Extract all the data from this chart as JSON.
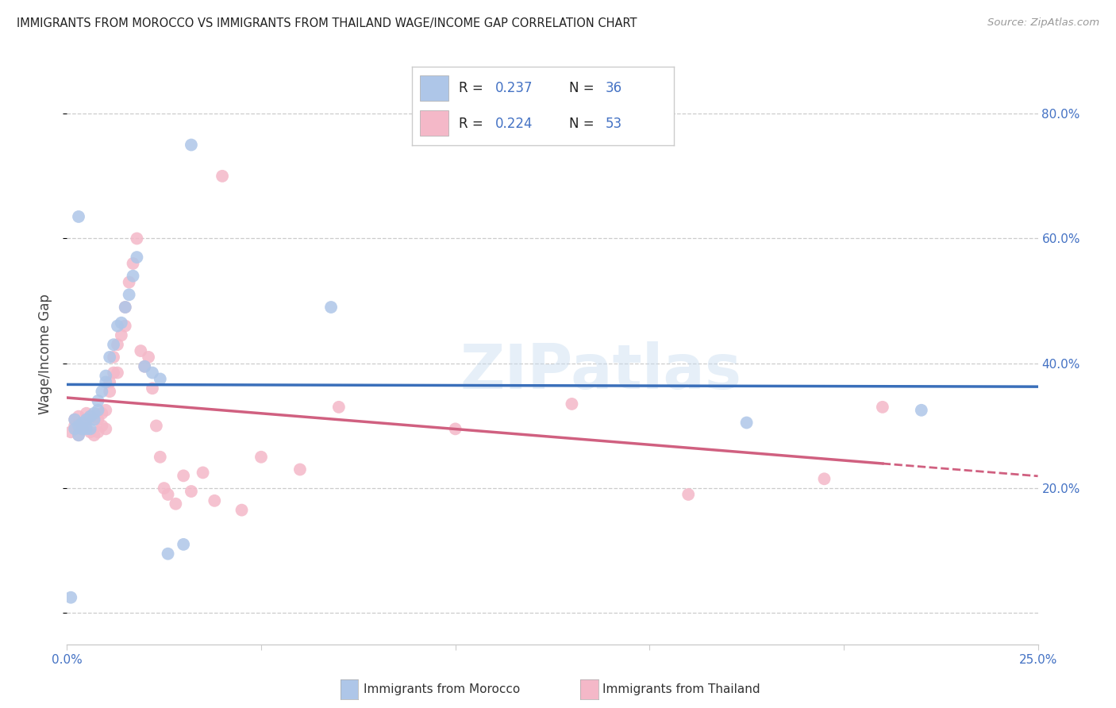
{
  "title": "IMMIGRANTS FROM MOROCCO VS IMMIGRANTS FROM THAILAND WAGE/INCOME GAP CORRELATION CHART",
  "source": "Source: ZipAtlas.com",
  "ylabel": "Wage/Income Gap",
  "color_morocco": "#aec6e8",
  "color_thailand": "#f4b8c8",
  "line_color_morocco": "#3a6fba",
  "line_color_thailand": "#d06080",
  "watermark": "ZIPatlas",
  "xlim": [
    0.0,
    0.25
  ],
  "ylim": [
    -0.05,
    0.88
  ],
  "ytick_positions": [
    0.0,
    0.2,
    0.4,
    0.6,
    0.8
  ],
  "ytick_labels": [
    "",
    "20.0%",
    "40.0%",
    "60.0%",
    "80.0%"
  ],
  "xtick_positions": [
    0.0,
    0.05,
    0.1,
    0.15,
    0.2,
    0.25
  ],
  "xtick_labels": [
    "0.0%",
    "",
    "",
    "",
    "",
    "25.0%"
  ],
  "morocco_x": [
    0.001,
    0.002,
    0.002,
    0.003,
    0.003,
    0.004,
    0.004,
    0.005,
    0.005,
    0.006,
    0.006,
    0.007,
    0.007,
    0.008,
    0.008,
    0.009,
    0.01,
    0.01,
    0.011,
    0.012,
    0.013,
    0.014,
    0.015,
    0.016,
    0.017,
    0.018,
    0.02,
    0.022,
    0.024,
    0.026,
    0.03,
    0.032,
    0.068,
    0.175,
    0.22,
    0.003
  ],
  "morocco_y": [
    0.025,
    0.295,
    0.31,
    0.3,
    0.285,
    0.305,
    0.295,
    0.31,
    0.295,
    0.295,
    0.315,
    0.32,
    0.31,
    0.34,
    0.325,
    0.355,
    0.38,
    0.37,
    0.41,
    0.43,
    0.46,
    0.465,
    0.49,
    0.51,
    0.54,
    0.57,
    0.395,
    0.385,
    0.375,
    0.095,
    0.11,
    0.75,
    0.49,
    0.305,
    0.325,
    0.635
  ],
  "thailand_x": [
    0.001,
    0.002,
    0.002,
    0.003,
    0.003,
    0.004,
    0.005,
    0.005,
    0.006,
    0.006,
    0.007,
    0.007,
    0.008,
    0.008,
    0.009,
    0.009,
    0.01,
    0.01,
    0.011,
    0.011,
    0.012,
    0.012,
    0.013,
    0.013,
    0.014,
    0.015,
    0.015,
    0.016,
    0.017,
    0.018,
    0.019,
    0.02,
    0.021,
    0.022,
    0.023,
    0.024,
    0.025,
    0.026,
    0.028,
    0.03,
    0.032,
    0.035,
    0.038,
    0.04,
    0.045,
    0.05,
    0.06,
    0.07,
    0.1,
    0.13,
    0.16,
    0.195,
    0.21
  ],
  "thailand_y": [
    0.29,
    0.3,
    0.31,
    0.285,
    0.315,
    0.295,
    0.305,
    0.32,
    0.29,
    0.315,
    0.285,
    0.315,
    0.29,
    0.31,
    0.3,
    0.32,
    0.295,
    0.325,
    0.355,
    0.37,
    0.385,
    0.41,
    0.385,
    0.43,
    0.445,
    0.46,
    0.49,
    0.53,
    0.56,
    0.6,
    0.42,
    0.395,
    0.41,
    0.36,
    0.3,
    0.25,
    0.2,
    0.19,
    0.175,
    0.22,
    0.195,
    0.225,
    0.18,
    0.7,
    0.165,
    0.25,
    0.23,
    0.33,
    0.295,
    0.335,
    0.19,
    0.215,
    0.33
  ]
}
